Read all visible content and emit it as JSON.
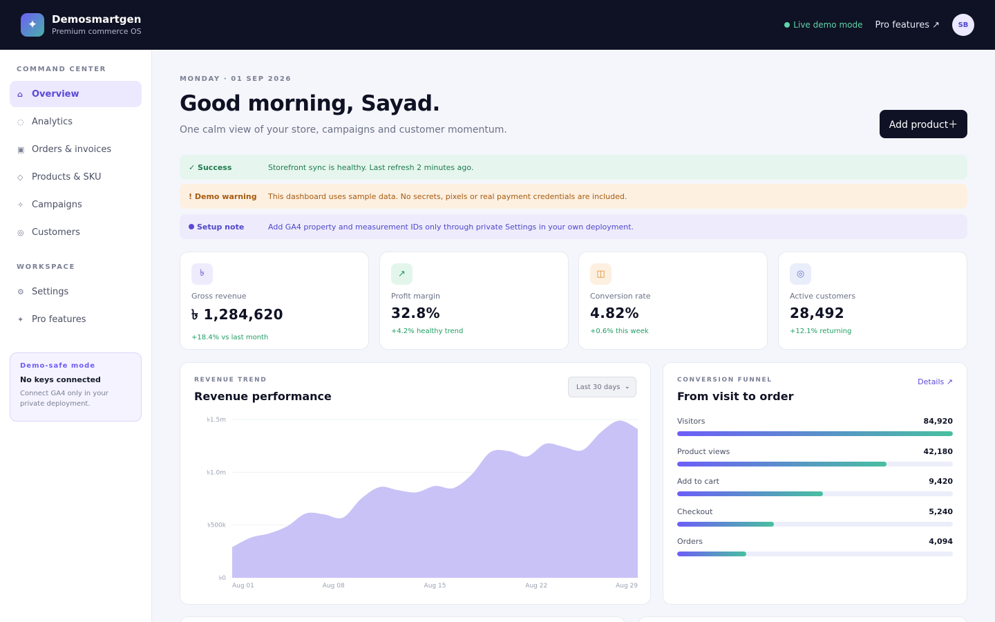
{
  "app": {
    "name": "Demosmartgen",
    "tagline": "Premium commerce OS",
    "logo_glyph": "✦",
    "live_label": "Live demo mode",
    "pro_link": "Pro features ↗",
    "avatar_initials": "SB"
  },
  "sidebar": {
    "section1": "COMMAND CENTER",
    "items": [
      {
        "icon": "⌂",
        "label": "Overview",
        "active": true
      },
      {
        "icon": "◌",
        "label": "Analytics"
      },
      {
        "icon": "▣",
        "label": "Orders & invoices"
      },
      {
        "icon": "◇",
        "label": "Products & SKU"
      },
      {
        "icon": "✧",
        "label": "Campaigns"
      },
      {
        "icon": "◎",
        "label": "Customers"
      }
    ],
    "section2": "WORKSPACE",
    "workspace": [
      {
        "icon": "⚙",
        "label": "Settings"
      },
      {
        "icon": "✦",
        "label": "Pro features"
      }
    ],
    "demo_card": {
      "title": "Demo-safe mode",
      "heading": "No keys connected",
      "body": "Connect GA4 only in your private deployment."
    }
  },
  "header": {
    "date": "MONDAY · 01 SEP 2026",
    "greeting": "Good morning, Sayad.",
    "subtitle": "One calm view of your store, campaigns and customer momentum.",
    "add_button": "Add product＋"
  },
  "alerts": {
    "success": {
      "label": "✓ Success",
      "text": "Storefront sync is healthy. Last refresh 2 minutes ago."
    },
    "warning": {
      "label": "! Demo warning",
      "text": "This dashboard uses sample data. No secrets, pixels or real payment credentials are included."
    },
    "setup": {
      "label": "Setup note",
      "text": "Add GA4 property and measurement IDs only through private Settings in your own deployment."
    }
  },
  "kpis": [
    {
      "icon": "৳",
      "label": "Gross revenue",
      "value": "৳ 1,284,620",
      "delta": "+18.4% vs last month",
      "bg": "#eeecfc",
      "fg": "#5b48d6"
    },
    {
      "icon": "↗",
      "label": "Profit margin",
      "value": "32.8%",
      "delta": "+4.2% healthy trend",
      "bg": "#e3f6ec",
      "fg": "#1f9d63"
    },
    {
      "icon": "◫",
      "label": "Conversion rate",
      "value": "4.82%",
      "delta": "+0.6% this week",
      "bg": "#fdf0e1",
      "fg": "#d98a2b"
    },
    {
      "icon": "◎",
      "label": "Active customers",
      "value": "28,492",
      "delta": "+12.1% returning",
      "bg": "#eaeefb",
      "fg": "#6474c9"
    }
  ],
  "revenue_card": {
    "eyebrow": "REVENUE TREND",
    "title": "Revenue performance",
    "range_select": "Last 30 days"
  },
  "chart_data": {
    "type": "area",
    "x_ticks": [
      "Aug 01",
      "Aug 08",
      "Aug 15",
      "Aug 22",
      "Aug 29"
    ],
    "y_ticks": [
      "৳0",
      "৳500k",
      "৳1.0m",
      "৳1.5m"
    ],
    "ylim": [
      0,
      1500000
    ],
    "grid": true,
    "series": [
      {
        "color": "#c9c2f7",
        "values": [
          290000,
          380000,
          420000,
          490000,
          610000,
          600000,
          570000,
          750000,
          860000,
          830000,
          810000,
          870000,
          850000,
          980000,
          1190000,
          1200000,
          1150000,
          1270000,
          1240000,
          1210000,
          1380000,
          1490000,
          1410000
        ]
      }
    ]
  },
  "funnel": {
    "eyebrow": "CONVERSION FUNNEL",
    "title": "From visit to order",
    "details": "Details ↗",
    "rows": [
      {
        "label": "Visitors",
        "value": "84,920",
        "fill": 1.0
      },
      {
        "label": "Product views",
        "value": "42,180",
        "fill": 0.76
      },
      {
        "label": "Add to cart",
        "value": "9,420",
        "fill": 0.53
      },
      {
        "label": "Checkout",
        "value": "5,240",
        "fill": 0.35
      },
      {
        "label": "Orders",
        "value": "4,094",
        "fill": 0.25
      }
    ]
  }
}
